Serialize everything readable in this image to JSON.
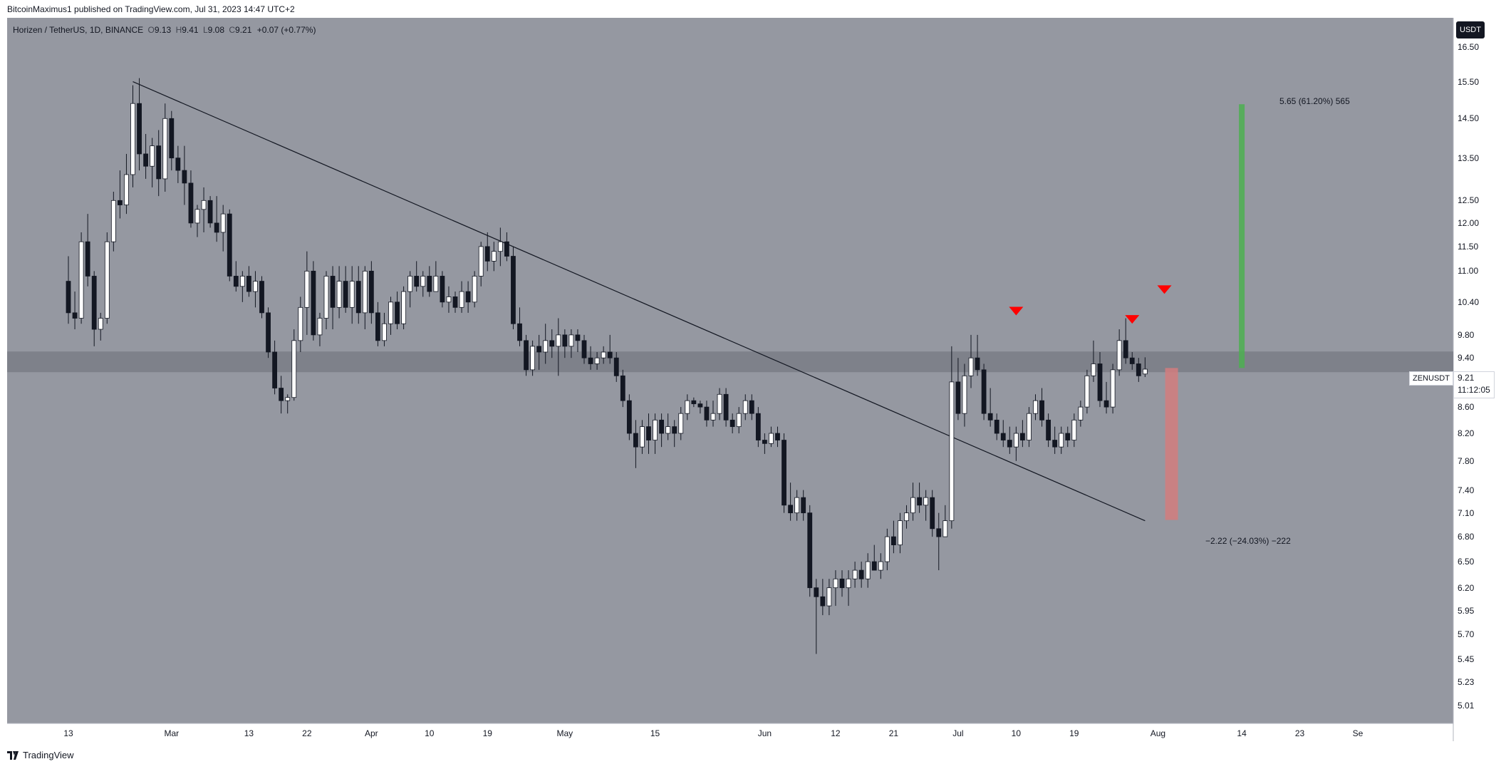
{
  "header": {
    "published": "BitcoinMaximus1 published on TradingView.com, Jul 31, 2023 14:47 UTC+2"
  },
  "symbol_bar": {
    "name": "Horizen / TetherUS, 1D, BINANCE",
    "o_label": "O",
    "o": "9.13",
    "h_label": "H",
    "h": "9.41",
    "l_label": "L",
    "l": "9.08",
    "c_label": "C",
    "c": "9.21",
    "change": "+0.07 (+0.77%)"
  },
  "currency": "USDT",
  "price_tag": {
    "ticker": "ZENUSDT",
    "price": "9.21",
    "countdown": "11:12:05"
  },
  "annotations": {
    "upper": "5.65 (61.20%) 565",
    "lower": "−2.22 (−24.03%) −222"
  },
  "footer": {
    "brand": "TradingView"
  },
  "colors": {
    "background": "#9598a1",
    "bull": "#ffffff",
    "bear": "#131722",
    "zone": "#7b7e87",
    "marker": "#ff0000",
    "target_up": "#4caf50",
    "target_down": "#d27c7e"
  },
  "chart_data": {
    "type": "candlestick",
    "scale": "log",
    "ylim": [
      4.85,
      17.4
    ],
    "y_ticks": [
      "16.50",
      "15.50",
      "14.50",
      "13.50",
      "12.50",
      "12.00",
      "11.50",
      "11.00",
      "10.40",
      "9.80",
      "9.40",
      "8.60",
      "8.20",
      "7.80",
      "7.40",
      "7.10",
      "6.80",
      "6.50",
      "6.20",
      "5.95",
      "5.70",
      "5.45",
      "5.23",
      "5.01"
    ],
    "x_ticks": [
      {
        "label": "13",
        "i": 0
      },
      {
        "label": "Mar",
        "i": 16
      },
      {
        "label": "13",
        "i": 28
      },
      {
        "label": "22",
        "i": 37
      },
      {
        "label": "Apr",
        "i": 47
      },
      {
        "label": "10",
        "i": 56
      },
      {
        "label": "19",
        "i": 65
      },
      {
        "label": "May",
        "i": 77
      },
      {
        "label": "15",
        "i": 91
      },
      {
        "label": "Jun",
        "i": 108
      },
      {
        "label": "12",
        "i": 119
      },
      {
        "label": "21",
        "i": 128
      },
      {
        "label": "Jul",
        "i": 138
      },
      {
        "label": "10",
        "i": 147
      },
      {
        "label": "19",
        "i": 156
      },
      {
        "label": "Aug",
        "i": 169
      },
      {
        "label": "14",
        "i": 182
      },
      {
        "label": "23",
        "i": 191
      },
      {
        "label": "Se",
        "i": 200
      }
    ],
    "candles": [
      [
        10.8,
        11.3,
        10.0,
        10.2
      ],
      [
        10.2,
        10.6,
        9.9,
        10.1
      ],
      [
        10.1,
        11.8,
        10.0,
        11.6
      ],
      [
        11.6,
        12.2,
        10.7,
        10.9
      ],
      [
        10.9,
        11.0,
        9.6,
        9.9
      ],
      [
        9.9,
        10.2,
        9.7,
        10.1
      ],
      [
        10.1,
        11.8,
        10.0,
        11.6
      ],
      [
        11.6,
        12.7,
        11.4,
        12.5
      ],
      [
        12.5,
        13.2,
        12.1,
        12.4
      ],
      [
        12.4,
        13.6,
        12.2,
        13.1
      ],
      [
        13.1,
        15.4,
        12.8,
        14.9
      ],
      [
        14.9,
        15.6,
        13.2,
        13.6
      ],
      [
        13.6,
        14.1,
        13.0,
        13.3
      ],
      [
        13.3,
        14.0,
        12.8,
        13.8
      ],
      [
        13.8,
        14.2,
        12.6,
        13.0
      ],
      [
        13.0,
        14.9,
        12.7,
        14.5
      ],
      [
        14.5,
        14.7,
        13.2,
        13.5
      ],
      [
        13.5,
        13.8,
        12.9,
        13.2
      ],
      [
        13.2,
        13.8,
        12.4,
        12.9
      ],
      [
        12.9,
        13.2,
        11.9,
        12.0
      ],
      [
        12.0,
        12.4,
        11.7,
        12.3
      ],
      [
        12.3,
        12.8,
        11.8,
        12.5
      ],
      [
        12.5,
        12.6,
        11.9,
        12.0
      ],
      [
        12.0,
        12.6,
        11.6,
        11.8
      ],
      [
        11.8,
        12.4,
        11.4,
        12.2
      ],
      [
        12.2,
        12.3,
        10.8,
        10.9
      ],
      [
        10.9,
        11.2,
        10.6,
        10.7
      ],
      [
        10.7,
        11.0,
        10.4,
        10.9
      ],
      [
        10.9,
        11.1,
        10.5,
        10.6
      ],
      [
        10.6,
        11.0,
        10.3,
        10.8
      ],
      [
        10.8,
        10.9,
        10.1,
        10.2
      ],
      [
        10.2,
        10.3,
        9.4,
        9.5
      ],
      [
        9.5,
        9.7,
        8.8,
        8.9
      ],
      [
        8.9,
        9.1,
        8.5,
        8.7
      ],
      [
        8.7,
        8.8,
        8.5,
        8.75
      ],
      [
        8.75,
        9.9,
        8.7,
        9.7
      ],
      [
        9.7,
        10.5,
        9.5,
        10.3
      ],
      [
        10.3,
        11.4,
        9.8,
        11.0
      ],
      [
        11.0,
        11.2,
        9.7,
        9.8
      ],
      [
        9.8,
        10.2,
        9.6,
        10.1
      ],
      [
        10.1,
        11.0,
        9.9,
        10.9
      ],
      [
        10.9,
        11.1,
        9.9,
        10.3
      ],
      [
        10.3,
        11.1,
        10.1,
        10.8
      ],
      [
        10.8,
        11.1,
        10.2,
        10.3
      ],
      [
        10.3,
        11.1,
        10.0,
        10.8
      ],
      [
        10.8,
        11.1,
        10.0,
        10.2
      ],
      [
        10.2,
        11.1,
        9.9,
        11.0
      ],
      [
        11.0,
        11.2,
        10.0,
        10.2
      ],
      [
        10.2,
        10.4,
        9.6,
        9.7
      ],
      [
        9.7,
        10.2,
        9.6,
        10.0
      ],
      [
        10.0,
        10.5,
        9.8,
        10.4
      ],
      [
        10.4,
        10.6,
        9.9,
        10.0
      ],
      [
        10.0,
        10.7,
        9.9,
        10.6
      ],
      [
        10.6,
        11.0,
        10.3,
        10.9
      ],
      [
        10.9,
        11.2,
        10.6,
        10.7
      ],
      [
        10.7,
        11.0,
        10.5,
        10.9
      ],
      [
        10.9,
        11.1,
        10.5,
        10.6
      ],
      [
        10.6,
        11.2,
        10.6,
        10.9
      ],
      [
        10.9,
        11.0,
        10.3,
        10.4
      ],
      [
        10.4,
        10.7,
        10.2,
        10.5
      ],
      [
        10.5,
        10.6,
        10.2,
        10.3
      ],
      [
        10.3,
        10.8,
        10.2,
        10.6
      ],
      [
        10.6,
        10.8,
        10.2,
        10.4
      ],
      [
        10.4,
        11.0,
        10.3,
        10.9
      ],
      [
        10.9,
        11.6,
        10.7,
        11.5
      ],
      [
        11.5,
        11.8,
        11.0,
        11.2
      ],
      [
        11.2,
        11.6,
        11.0,
        11.4
      ],
      [
        11.4,
        11.9,
        11.1,
        11.6
      ],
      [
        11.6,
        11.8,
        11.2,
        11.3
      ],
      [
        11.3,
        11.5,
        9.9,
        10.0
      ],
      [
        10.0,
        10.3,
        9.6,
        9.7
      ],
      [
        9.7,
        9.8,
        9.1,
        9.2
      ],
      [
        9.2,
        9.7,
        9.1,
        9.6
      ],
      [
        9.6,
        9.8,
        9.2,
        9.5
      ],
      [
        9.5,
        10.0,
        9.3,
        9.7
      ],
      [
        9.7,
        9.9,
        9.4,
        9.6
      ],
      [
        9.6,
        10.1,
        9.1,
        9.8
      ],
      [
        9.8,
        9.9,
        9.4,
        9.6
      ],
      [
        9.6,
        9.9,
        9.4,
        9.8
      ],
      [
        9.8,
        9.9,
        9.5,
        9.7
      ],
      [
        9.7,
        9.8,
        9.3,
        9.4
      ],
      [
        9.4,
        9.6,
        9.2,
        9.3
      ],
      [
        9.3,
        9.5,
        9.2,
        9.4
      ],
      [
        9.4,
        9.6,
        9.3,
        9.5
      ],
      [
        9.5,
        9.8,
        9.3,
        9.4
      ],
      [
        9.4,
        9.5,
        9.0,
        9.1
      ],
      [
        9.1,
        9.2,
        8.6,
        8.7
      ],
      [
        8.7,
        8.8,
        8.1,
        8.2
      ],
      [
        8.2,
        8.4,
        7.7,
        8.0
      ],
      [
        8.0,
        8.4,
        7.9,
        8.3
      ],
      [
        8.3,
        8.5,
        7.9,
        8.1
      ],
      [
        8.1,
        8.5,
        7.9,
        8.4
      ],
      [
        8.4,
        8.5,
        8.0,
        8.2
      ],
      [
        8.2,
        8.5,
        8.1,
        8.3
      ],
      [
        8.3,
        8.4,
        8.0,
        8.2
      ],
      [
        8.2,
        8.6,
        8.1,
        8.5
      ],
      [
        8.5,
        8.8,
        8.4,
        8.7
      ],
      [
        8.7,
        8.75,
        8.6,
        8.65
      ],
      [
        8.65,
        8.7,
        8.5,
        8.6
      ],
      [
        8.6,
        8.7,
        8.3,
        8.4
      ],
      [
        8.4,
        8.7,
        8.3,
        8.5
      ],
      [
        8.5,
        8.9,
        8.4,
        8.8
      ],
      [
        8.8,
        8.9,
        8.3,
        8.4
      ],
      [
        8.4,
        8.5,
        8.2,
        8.3
      ],
      [
        8.3,
        8.6,
        8.2,
        8.5
      ],
      [
        8.5,
        8.8,
        8.4,
        8.7
      ],
      [
        8.7,
        8.8,
        8.4,
        8.5
      ],
      [
        8.5,
        8.6,
        8.0,
        8.1
      ],
      [
        8.1,
        8.2,
        7.9,
        8.05
      ],
      [
        8.05,
        8.3,
        8.0,
        8.2
      ],
      [
        8.2,
        8.3,
        8.0,
        8.1
      ],
      [
        8.1,
        8.2,
        7.1,
        7.2
      ],
      [
        7.2,
        7.5,
        7.0,
        7.1
      ],
      [
        7.1,
        7.4,
        7.0,
        7.3
      ],
      [
        7.3,
        7.4,
        7.0,
        7.1
      ],
      [
        7.1,
        7.2,
        6.1,
        6.2
      ],
      [
        6.2,
        6.3,
        5.5,
        6.1
      ],
      [
        6.1,
        6.3,
        5.9,
        6.0
      ],
      [
        6.0,
        6.3,
        5.9,
        6.2
      ],
      [
        6.2,
        6.4,
        6.0,
        6.3
      ],
      [
        6.3,
        6.4,
        6.1,
        6.2
      ],
      [
        6.2,
        6.4,
        6.0,
        6.3
      ],
      [
        6.3,
        6.5,
        6.2,
        6.4
      ],
      [
        6.4,
        6.5,
        6.2,
        6.3
      ],
      [
        6.3,
        6.6,
        6.2,
        6.5
      ],
      [
        6.5,
        6.7,
        6.4,
        6.4
      ],
      [
        6.4,
        6.6,
        6.3,
        6.5
      ],
      [
        6.5,
        6.9,
        6.4,
        6.8
      ],
      [
        6.8,
        7.0,
        6.6,
        6.7
      ],
      [
        6.7,
        7.1,
        6.6,
        7.0
      ],
      [
        7.0,
        7.2,
        6.9,
        7.1
      ],
      [
        7.1,
        7.5,
        7.0,
        7.3
      ],
      [
        7.3,
        7.5,
        7.1,
        7.2
      ],
      [
        7.2,
        7.4,
        7.0,
        7.3
      ],
      [
        7.3,
        7.4,
        6.8,
        6.9
      ],
      [
        6.9,
        7.1,
        6.4,
        6.8
      ],
      [
        6.8,
        7.2,
        6.8,
        7.0
      ],
      [
        7.0,
        9.6,
        6.9,
        9.0
      ],
      [
        9.0,
        9.4,
        8.4,
        8.5
      ],
      [
        8.5,
        9.3,
        8.3,
        9.1
      ],
      [
        9.1,
        9.8,
        8.9,
        9.4
      ],
      [
        9.4,
        9.8,
        9.1,
        9.2
      ],
      [
        9.2,
        9.3,
        8.4,
        8.5
      ],
      [
        8.5,
        8.9,
        8.3,
        8.4
      ],
      [
        8.4,
        8.5,
        8.1,
        8.2
      ],
      [
        8.2,
        8.4,
        8.0,
        8.1
      ],
      [
        8.1,
        8.3,
        7.9,
        8.0
      ],
      [
        8.0,
        8.3,
        7.8,
        8.2
      ],
      [
        8.2,
        8.4,
        8.0,
        8.1
      ],
      [
        8.1,
        8.6,
        8.0,
        8.5
      ],
      [
        8.5,
        8.8,
        8.4,
        8.7
      ],
      [
        8.7,
        8.9,
        8.3,
        8.4
      ],
      [
        8.4,
        8.5,
        8.0,
        8.1
      ],
      [
        8.1,
        8.3,
        7.9,
        8.0
      ],
      [
        8.0,
        8.3,
        7.9,
        8.2
      ],
      [
        8.2,
        8.3,
        8.0,
        8.1
      ],
      [
        8.1,
        8.5,
        8.0,
        8.4
      ],
      [
        8.4,
        8.7,
        8.3,
        8.6
      ],
      [
        8.6,
        9.2,
        8.5,
        9.1
      ],
      [
        9.1,
        9.7,
        9.0,
        9.3
      ],
      [
        9.3,
        9.5,
        8.6,
        8.7
      ],
      [
        8.7,
        9.0,
        8.5,
        8.6
      ],
      [
        8.6,
        9.3,
        8.5,
        9.2
      ],
      [
        9.2,
        9.9,
        9.1,
        9.7
      ],
      [
        9.7,
        10.1,
        9.3,
        9.4
      ],
      [
        9.4,
        9.5,
        9.2,
        9.3
      ],
      [
        9.3,
        9.4,
        9.0,
        9.1
      ],
      [
        9.13,
        9.41,
        9.08,
        9.21
      ]
    ],
    "resistance_zone": [
      9.16,
      9.51
    ],
    "trendline": [
      {
        "i": 10,
        "price": 15.5
      },
      {
        "i": 167,
        "price": 7.0
      }
    ],
    "top_markers": [
      {
        "i": 147,
        "price": 10.1
      },
      {
        "i": 165,
        "price": 9.95
      },
      {
        "i": 170,
        "price": 10.5
      }
    ],
    "measure_up": {
      "i": 182,
      "from": 9.23,
      "to": 14.88
    },
    "measure_down": {
      "i": 171,
      "from": 9.23,
      "to": 7.01
    }
  }
}
